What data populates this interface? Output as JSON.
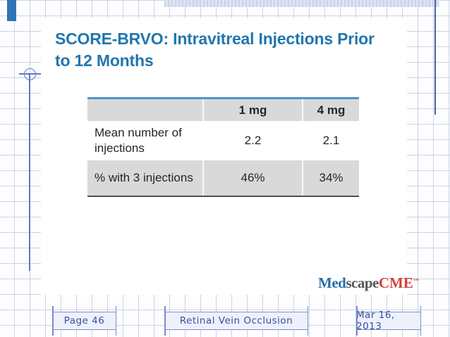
{
  "slide": {
    "title_line1": "SCORE-BRVO: Intravitreal Injections Prior",
    "title_line2": "to 12 Months",
    "full_title": "SCORE-BRVO: Intravitreal Injections Prior to 12 Months"
  },
  "table": {
    "col_headers": [
      "",
      "1 mg",
      "4 mg"
    ],
    "rows": [
      {
        "label": "Mean number of injections",
        "values": [
          "2.2",
          "2.1"
        ]
      },
      {
        "label": "% with 3 injections",
        "values": [
          "46%",
          "34%"
        ]
      }
    ]
  },
  "chart_data": {
    "type": "table",
    "categories": [
      "1 mg",
      "4 mg"
    ],
    "series": [
      {
        "name": "Mean number of injections",
        "values": [
          2.2,
          2.1
        ]
      },
      {
        "name": "% with 3 injections",
        "values": [
          46,
          34
        ]
      }
    ],
    "title": "SCORE-BRVO: Intravitreal Injections Prior to 12 Months"
  },
  "logo": {
    "part1": "Med",
    "part2": "scape",
    "part3": "CME",
    "trademark": "™"
  },
  "footer": {
    "page_label": "Page 46",
    "deck_title": "Retinal Vein Occlusion",
    "date": "Mar 16, 2013"
  },
  "colors": {
    "title_blue": "#2176ad",
    "table_accent_blue": "#4e94c8",
    "table_gray": "#d9d9d9",
    "logo_med_blue": "#2a6dab",
    "logo_scape_gray": "#55565a",
    "logo_cme_red": "#d2403c",
    "footer_ink_blue": "#3a4da6",
    "grid_line": "#c9d3e8",
    "corner_bar_blue": "#2e74b5"
  }
}
